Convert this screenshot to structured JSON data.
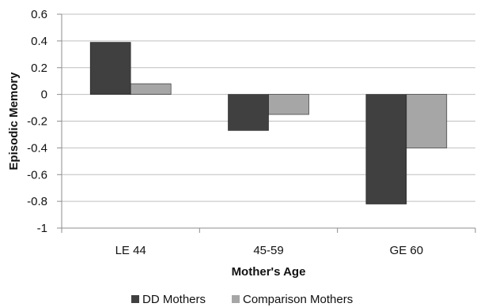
{
  "chart_data": {
    "type": "bar",
    "title": "",
    "xlabel": "Mother's Age",
    "ylabel": "Episodic Memory",
    "categories": [
      "LE 44",
      "45-59",
      "GE 60"
    ],
    "series": [
      {
        "name": "DD Mothers",
        "values": [
          0.39,
          -0.27,
          -0.82
        ],
        "color": "#404040"
      },
      {
        "name": "Comparison Mothers",
        "values": [
          0.08,
          -0.15,
          -0.4
        ],
        "color": "#a6a6a6"
      }
    ],
    "ylim": [
      -1,
      0.6
    ],
    "yticks": [
      "0.6",
      "0.4",
      "0.2",
      "0",
      "-0.2",
      "-0.4",
      "-0.6",
      "-0.8",
      "-1"
    ],
    "grid": true,
    "legend_position": "bottom"
  }
}
